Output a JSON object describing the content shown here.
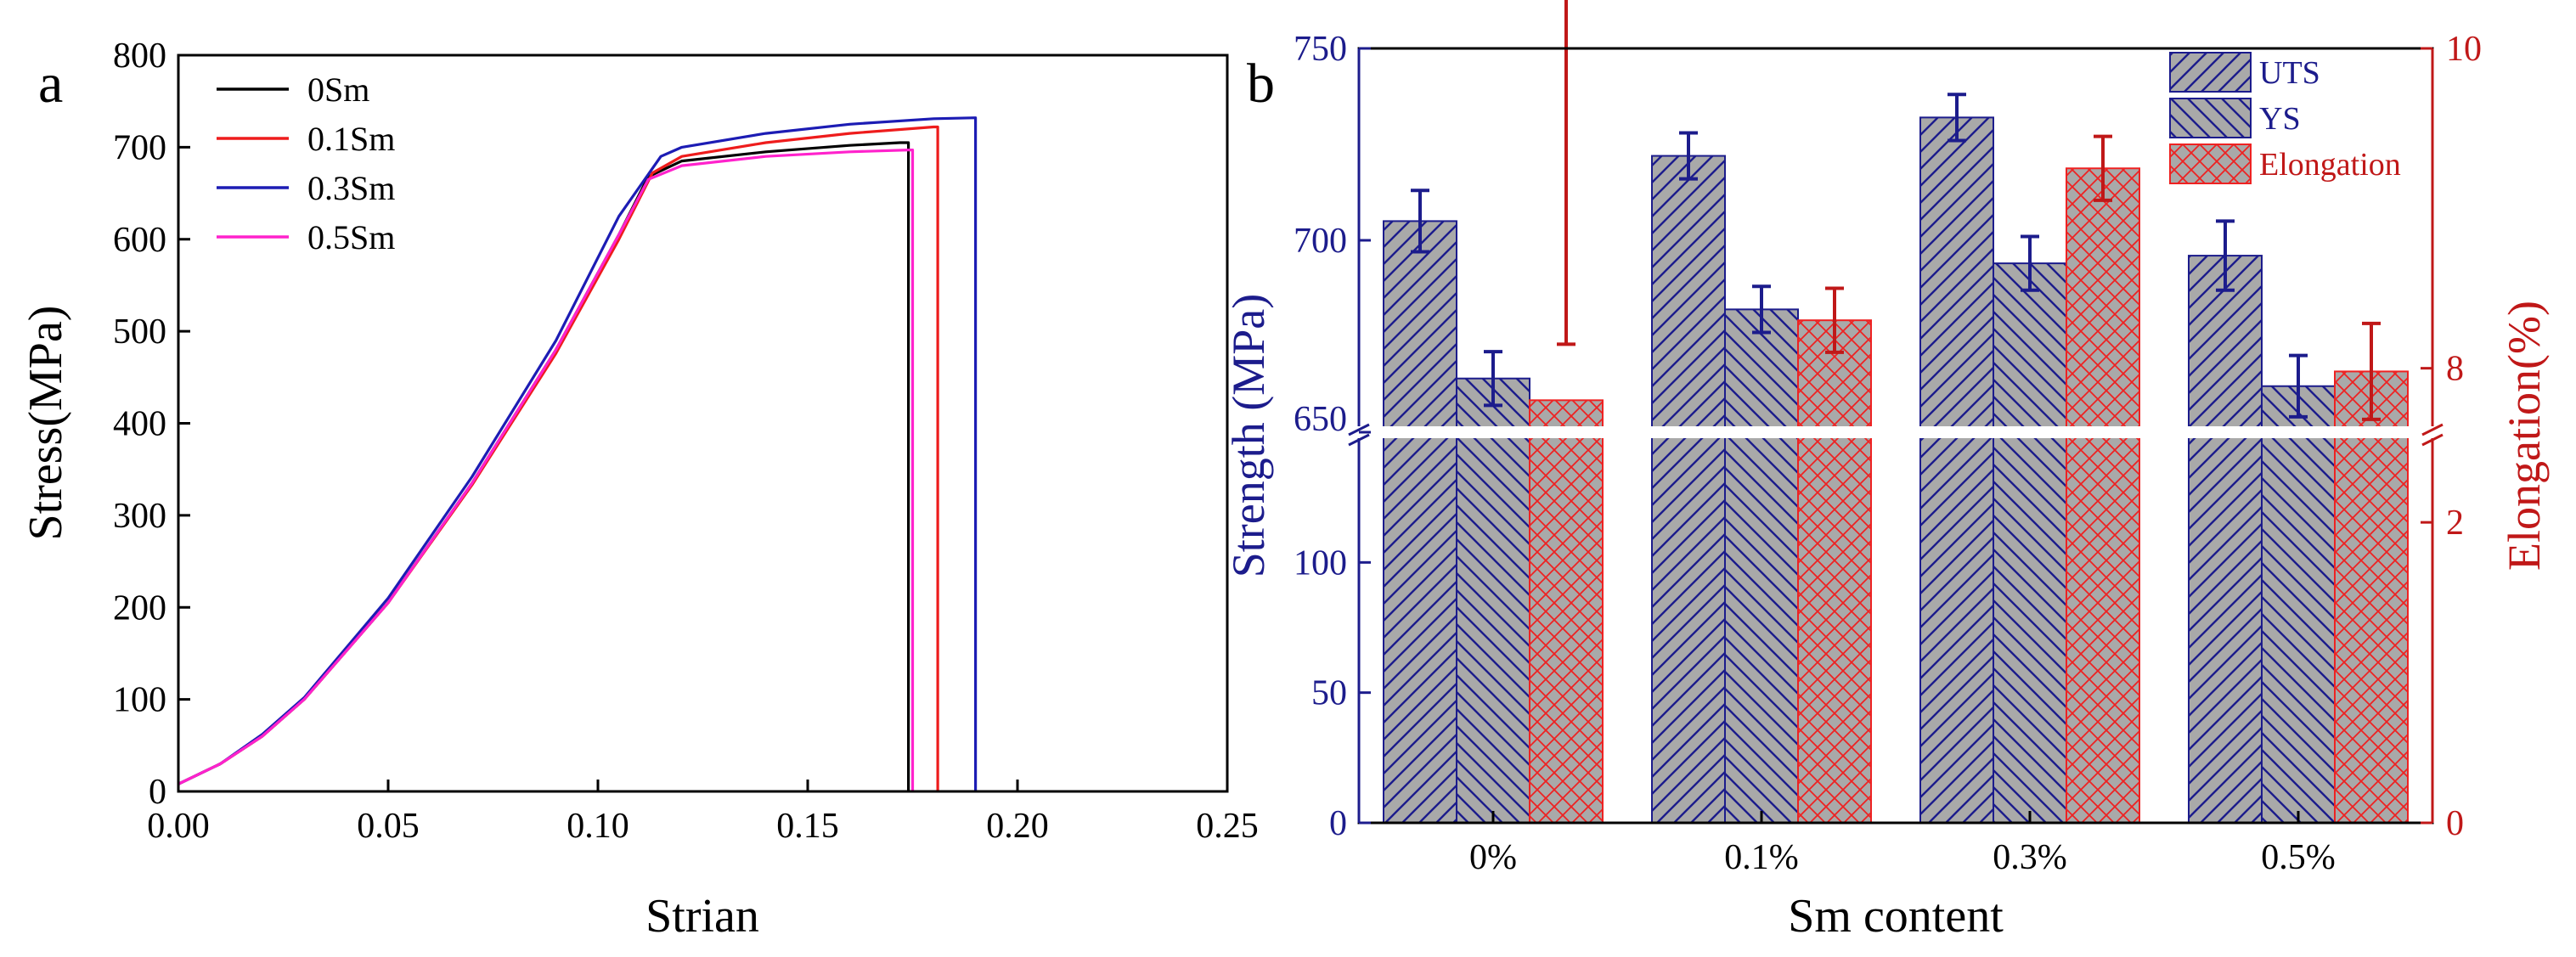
{
  "chart_data": [
    {
      "panel": "a",
      "type": "line",
      "xlabel": "Strian",
      "ylabel": "Stress(MPa)",
      "xlim": [
        0,
        0.25
      ],
      "ylim": [
        0,
        800
      ],
      "x_ticks": [
        "0.00",
        "0.05",
        "0.10",
        "0.15",
        "0.20",
        "0.25"
      ],
      "y_ticks": [
        "0",
        "100",
        "200",
        "300",
        "400",
        "500",
        "600",
        "700",
        "800"
      ],
      "grid": false,
      "legend_position": "top-left",
      "series": [
        {
          "name": "0Sm",
          "color": "#000000",
          "x": [
            0,
            0.01,
            0.02,
            0.03,
            0.05,
            0.07,
            0.09,
            0.105,
            0.112,
            0.12,
            0.14,
            0.16,
            0.172,
            0.174,
            0.174
          ],
          "y": [
            8,
            30,
            60,
            100,
            205,
            335,
            480,
            605,
            668,
            685,
            695,
            702,
            705,
            705,
            0
          ]
        },
        {
          "name": "0.1Sm",
          "color": "#ee1c1c",
          "x": [
            0,
            0.01,
            0.02,
            0.03,
            0.05,
            0.07,
            0.09,
            0.105,
            0.113,
            0.12,
            0.14,
            0.16,
            0.18,
            0.181,
            0.181
          ],
          "y": [
            8,
            30,
            60,
            100,
            205,
            333,
            476,
            600,
            672,
            690,
            705,
            715,
            722,
            722,
            0
          ]
        },
        {
          "name": "0.3Sm",
          "color": "#1c1cb4",
          "x": [
            0,
            0.01,
            0.02,
            0.03,
            0.05,
            0.07,
            0.09,
            0.105,
            0.115,
            0.12,
            0.14,
            0.16,
            0.18,
            0.19,
            0.19
          ],
          "y": [
            8,
            30,
            62,
            102,
            210,
            342,
            490,
            625,
            690,
            700,
            715,
            725,
            731,
            732,
            0
          ]
        },
        {
          "name": "0.5Sm",
          "color": "#ff22cc",
          "x": [
            0,
            0.01,
            0.02,
            0.03,
            0.05,
            0.07,
            0.09,
            0.105,
            0.112,
            0.12,
            0.14,
            0.16,
            0.174,
            0.175,
            0.175
          ],
          "y": [
            8,
            30,
            60,
            100,
            205,
            335,
            480,
            605,
            665,
            680,
            690,
            695,
            697,
            697,
            0
          ]
        }
      ]
    },
    {
      "panel": "b",
      "type": "bar",
      "xlabel": "Sm content",
      "ylabel": "Strength (MPa)",
      "y2label": "Elongation(%)",
      "categories": [
        "0%",
        "0.1%",
        "0.3%",
        "0.5%"
      ],
      "left_axis_ticks_upper": [
        "650",
        "700",
        "750"
      ],
      "left_axis_ticks_lower": [
        "0",
        "50",
        "100"
      ],
      "right_axis_ticks_upper": [
        "8",
        "10"
      ],
      "right_axis_ticks_lower": [
        "0",
        "2"
      ],
      "left_axis_break": [
        150,
        650
      ],
      "right_axis_break": [
        2.6,
        7.6
      ],
      "legend_position": "top-right",
      "series": [
        {
          "name": "UTS",
          "axis": "left",
          "values": [
            705,
            722,
            732,
            696
          ],
          "errors": [
            8,
            6,
            6,
            9
          ]
        },
        {
          "name": "YS",
          "axis": "left",
          "values": [
            664,
            682,
            694,
            662
          ],
          "errors": [
            7,
            6,
            7,
            8
          ]
        },
        {
          "name": "Elongation",
          "axis": "right",
          "values": [
            7.8,
            8.3,
            9.25,
            7.98
          ],
          "errors": [
            0.35,
            0.2,
            0.2,
            0.3
          ]
        }
      ],
      "colors": {
        "left_axis": "#1c1c8c",
        "right_axis": "#c01818",
        "bar_fill": "#a9a9a9",
        "uts_hatch": "#1c1c8c",
        "elong_hatch": "#ee2222"
      }
    }
  ]
}
